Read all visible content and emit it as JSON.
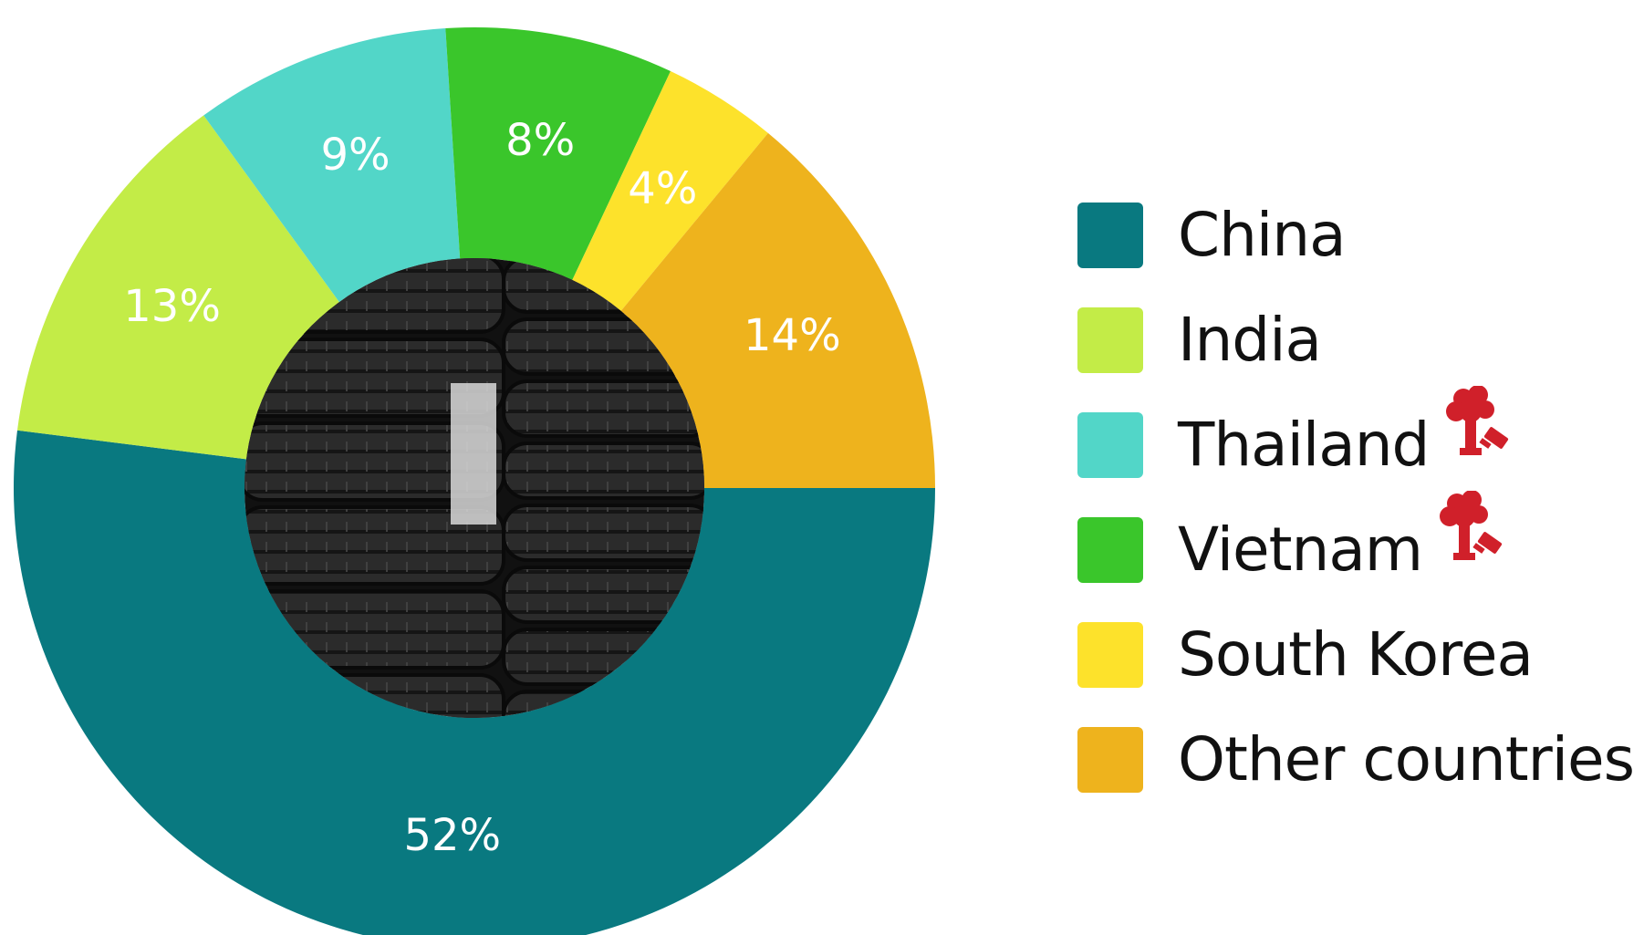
{
  "chart_data": {
    "type": "pie",
    "donut": true,
    "title": "",
    "categories": [
      "China",
      "India",
      "Thailand",
      "Vietnam",
      "South Korea",
      "Other countries"
    ],
    "values": [
      52,
      13,
      9,
      8,
      4,
      14
    ],
    "value_labels": [
      "52%",
      "13%",
      "9%",
      "8%",
      "4%",
      "14%"
    ],
    "colors": [
      "#097980",
      "#c3ec47",
      "#52d6c8",
      "#3ac62b",
      "#fde22b",
      "#eeb31d"
    ],
    "legend_position": "right",
    "center_image": "photo of stacked car tires"
  },
  "legend": {
    "items": [
      {
        "label": "China",
        "color": "#097980",
        "icon": null
      },
      {
        "label": "India",
        "color": "#c3ec47",
        "icon": null
      },
      {
        "label": "Thailand",
        "color": "#52d6c8",
        "icon": "tree-stump-axe-icon"
      },
      {
        "label": "Vietnam",
        "color": "#3ac62b",
        "icon": "tree-stump-axe-icon"
      },
      {
        "label": "South Korea",
        "color": "#fde22b",
        "icon": null
      },
      {
        "label": "Other countries",
        "color": "#eeb31d",
        "icon": null
      }
    ]
  }
}
